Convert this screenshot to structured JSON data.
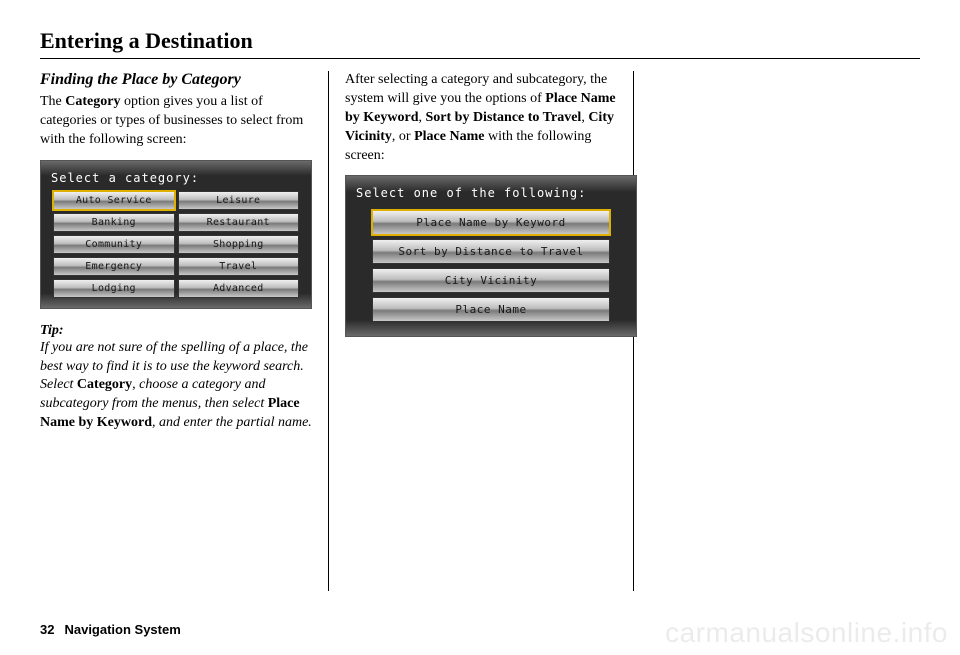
{
  "page": {
    "title": "Entering a Destination",
    "number": "32",
    "system_label": "Navigation System"
  },
  "section": {
    "heading": "Finding the Place by Category",
    "intro_pre": "The ",
    "intro_bold": "Category",
    "intro_post": " option gives you a list of categories or types of businesses to select from with the following screen:"
  },
  "screen1": {
    "title": "Select a category:",
    "buttons": [
      "Auto Service",
      "Leisure",
      "Banking",
      "Restaurant",
      "Community",
      "Shopping",
      "Emergency",
      "Travel",
      "Lodging",
      "Advanced"
    ],
    "selected_index": 0
  },
  "tip": {
    "label": "Tip:",
    "t1": "If you are not sure of the spelling of a place, the best way to find it is to use the keyword search. Select ",
    "b1": "Category",
    "t2": ", choose a category and subcategory from the menus, then select ",
    "b2": "Place Name by Keyword",
    "t3": ", and enter the partial name."
  },
  "col2": {
    "p1": "After selecting a category and subcategory, the system will give you the options of ",
    "b1": "Place Name by Keyword",
    "c1": ", ",
    "b2": "Sort by Distance to Travel",
    "c2": ", ",
    "b3": "City Vicinity",
    "c3": ", or ",
    "b4": "Place Name",
    "p2": " with the following screen:"
  },
  "screen2": {
    "title": "Select one of the following:",
    "buttons": [
      "Place Name by Keyword",
      "Sort by Distance to Travel",
      "City Vicinity",
      "Place Name"
    ],
    "selected_index": 0
  },
  "watermark": "carmanualsonline.info"
}
